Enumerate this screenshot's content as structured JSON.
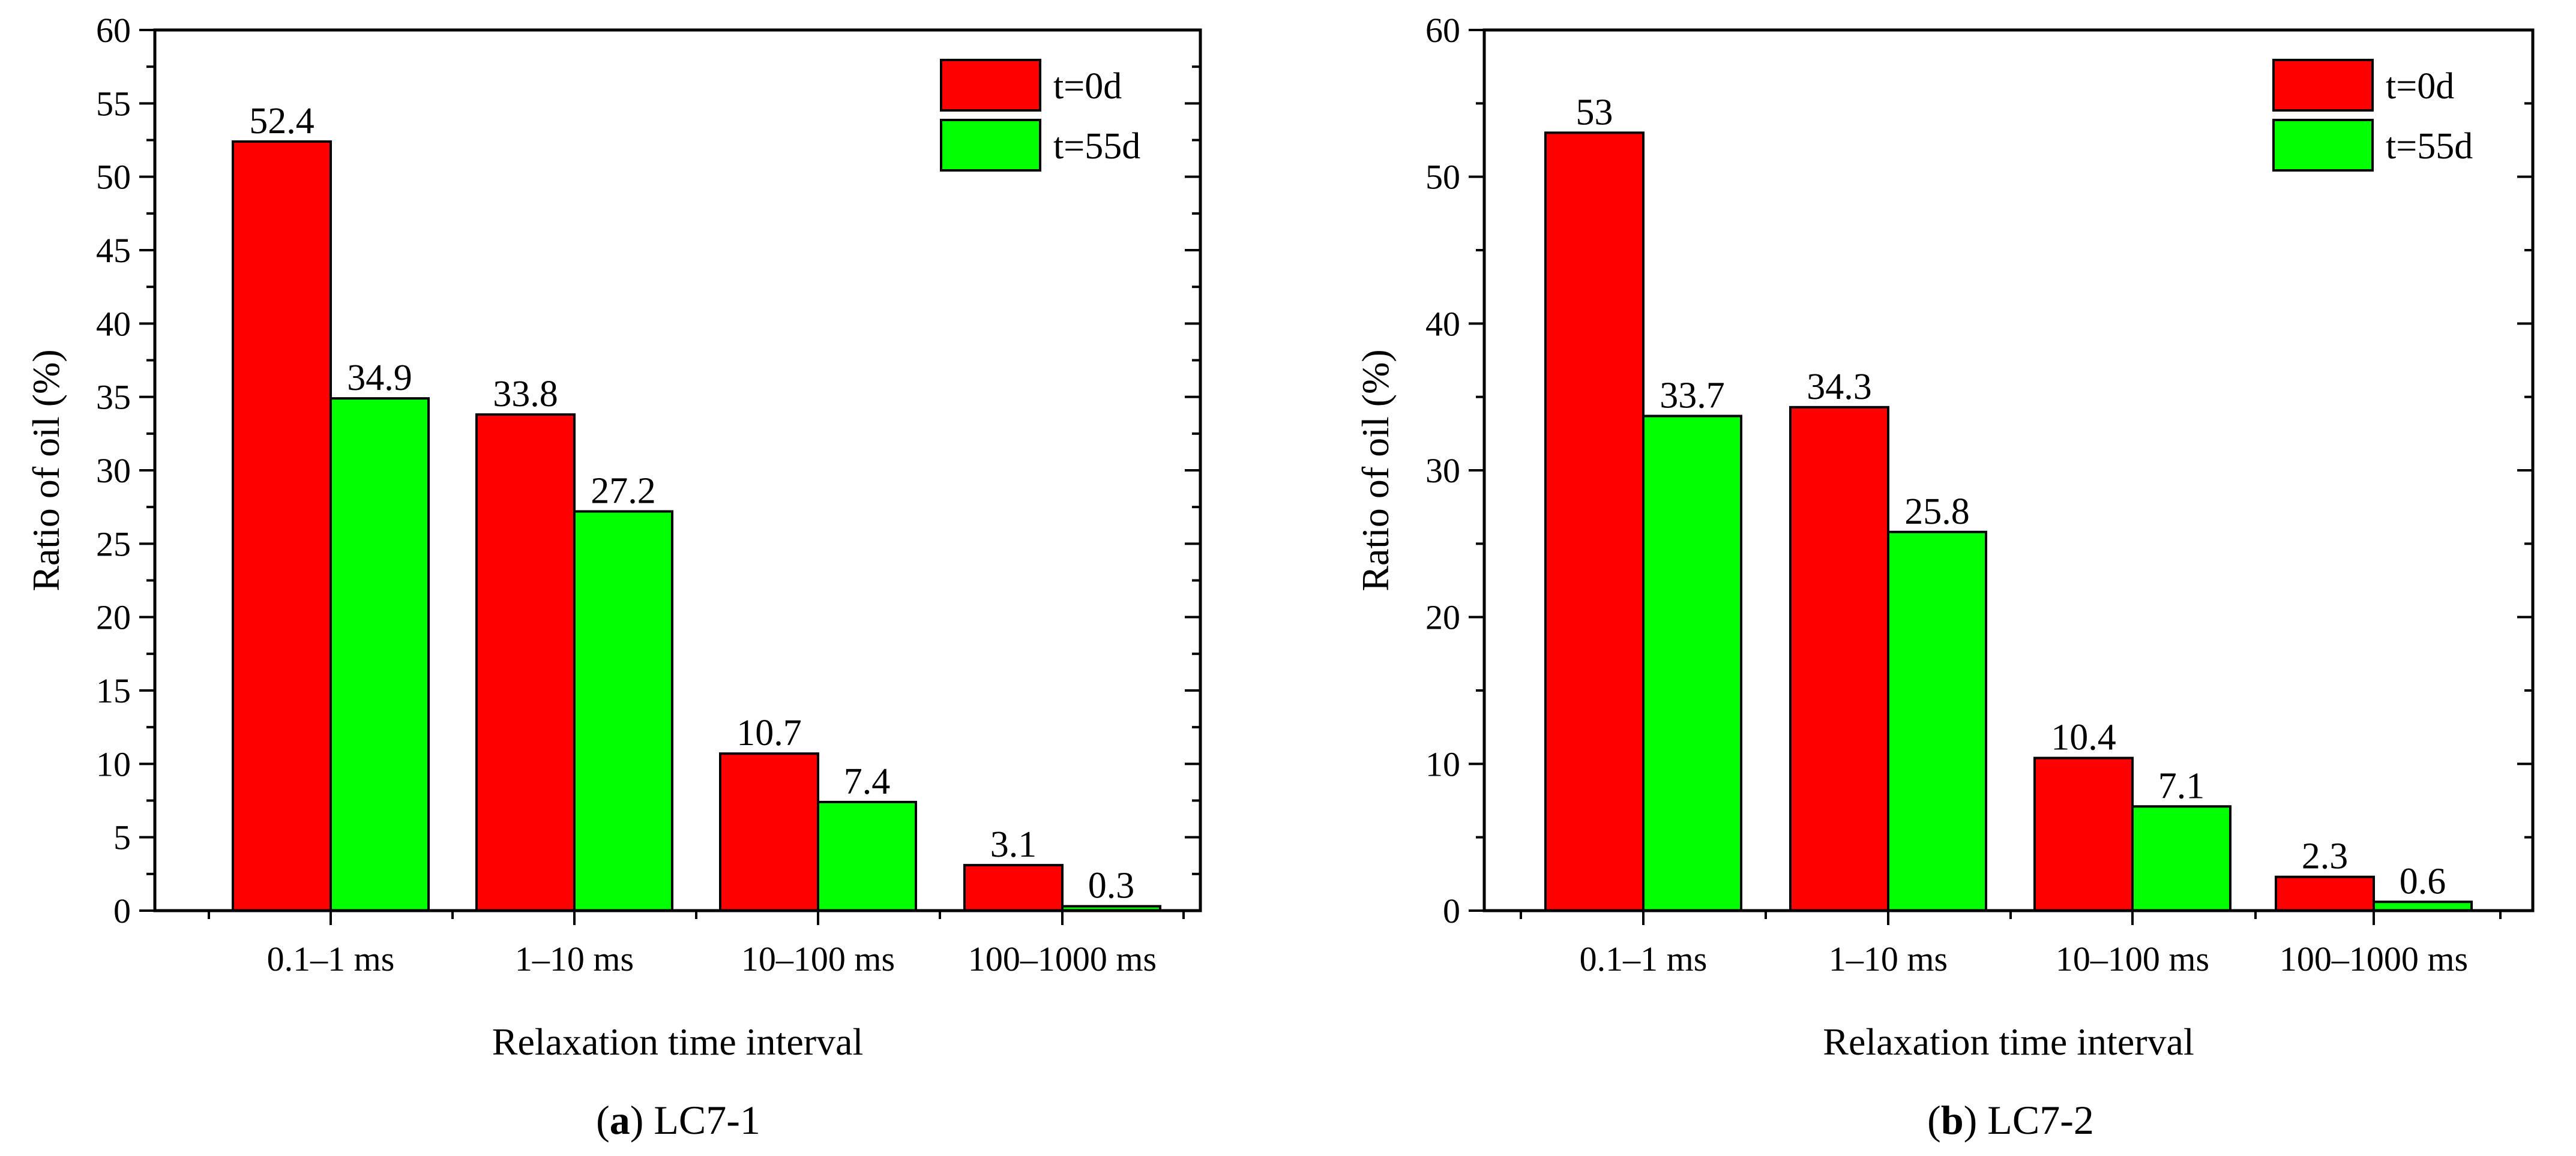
{
  "chart_data": [
    {
      "type": "bar",
      "panel_letter": "a",
      "caption_text": "LC7-1",
      "xlabel": "Relaxation time interval",
      "ylabel": "Ratio of oil (%)",
      "ylim": [
        0,
        60
      ],
      "y_major_ticks": [
        0,
        5,
        10,
        15,
        20,
        25,
        30,
        35,
        40,
        45,
        50,
        55,
        60
      ],
      "categories": [
        "0.1–1 ms",
        "1–10 ms",
        "10–100 ms",
        "100–1000 ms"
      ],
      "series": [
        {
          "name": "t=0d",
          "color": "#ff0000",
          "values": [
            52.4,
            33.8,
            10.7,
            3.1
          ],
          "labels": [
            "52.4",
            "33.8",
            "10.7",
            "3.1"
          ]
        },
        {
          "name": "t=55d",
          "color": "#00ff00",
          "values": [
            34.9,
            27.2,
            7.4,
            0.3
          ],
          "labels": [
            "34.9",
            "27.2",
            "7.4",
            "0.3"
          ]
        }
      ],
      "legend_position": "top-right",
      "grid": false
    },
    {
      "type": "bar",
      "panel_letter": "b",
      "caption_text": "LC7-2",
      "xlabel": "Relaxation time interval",
      "ylabel": "Ratio of oil (%)",
      "ylim": [
        0,
        60
      ],
      "y_major_ticks": [
        0,
        10,
        20,
        30,
        40,
        50,
        60
      ],
      "categories": [
        "0.1–1 ms",
        "1–10 ms",
        "10–100 ms",
        "100–1000 ms"
      ],
      "series": [
        {
          "name": "t=0d",
          "color": "#ff0000",
          "values": [
            53,
            34.3,
            10.4,
            2.3
          ],
          "labels": [
            "53",
            "34.3",
            "10.4",
            "2.3"
          ]
        },
        {
          "name": "t=55d",
          "color": "#00ff00",
          "values": [
            33.7,
            25.8,
            7.1,
            0.6
          ],
          "labels": [
            "33.7",
            "25.8",
            "7.1",
            "0.6"
          ]
        }
      ],
      "legend_position": "top-right",
      "grid": false
    }
  ]
}
